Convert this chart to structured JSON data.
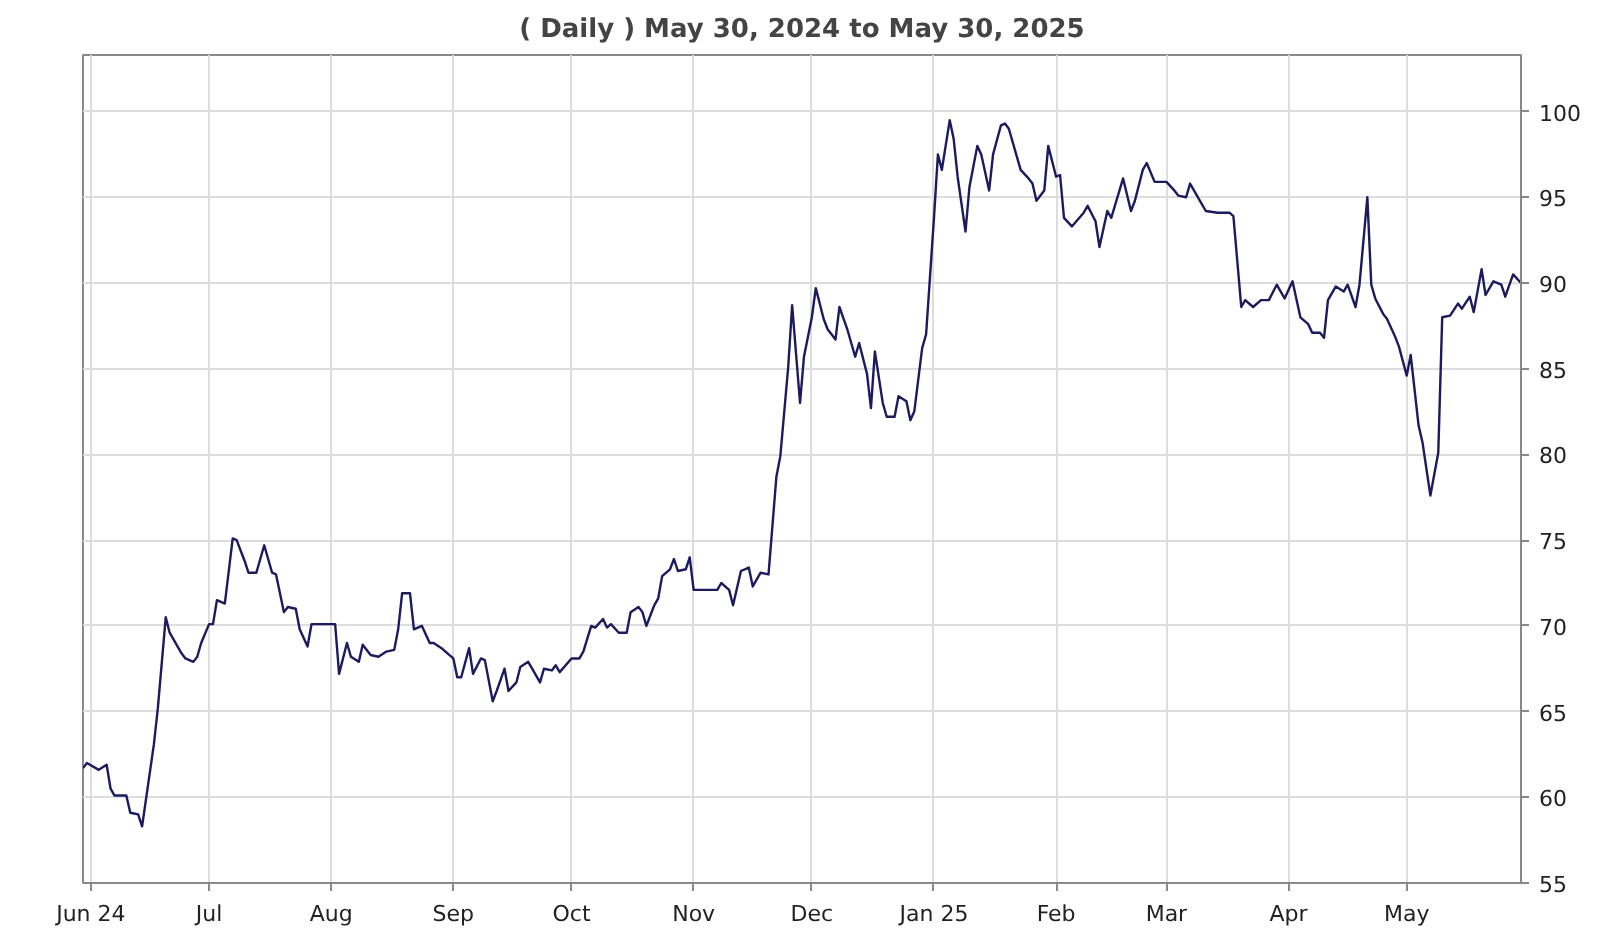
{
  "chart_data": {
    "type": "line",
    "title": "( Daily ) May 30, 2024 to May 30, 2025",
    "x": [
      "2024-05-30",
      "2024-05-31",
      "2024-06-03",
      "2024-06-05",
      "2024-06-06",
      "2024-06-07",
      "2024-06-10",
      "2024-06-11",
      "2024-06-13",
      "2024-06-14",
      "2024-06-17",
      "2024-06-18",
      "2024-06-20",
      "2024-06-21",
      "2024-06-24",
      "2024-06-25",
      "2024-06-27",
      "2024-06-28",
      "2024-06-29",
      "2024-07-01",
      "2024-07-02",
      "2024-07-03",
      "2024-07-05",
      "2024-07-07",
      "2024-07-08",
      "2024-07-10",
      "2024-07-11",
      "2024-07-13",
      "2024-07-15",
      "2024-07-17",
      "2024-07-18",
      "2024-07-20",
      "2024-07-21",
      "2024-07-23",
      "2024-07-24",
      "2024-07-26",
      "2024-07-27",
      "2024-08-02",
      "2024-08-03",
      "2024-08-05",
      "2024-08-06",
      "2024-08-08",
      "2024-08-09",
      "2024-08-11",
      "2024-08-13",
      "2024-08-15",
      "2024-08-17",
      "2024-08-18",
      "2024-08-19",
      "2024-08-21",
      "2024-08-22",
      "2024-08-24",
      "2024-08-26",
      "2024-08-27",
      "2024-08-29",
      "2024-08-30",
      "2024-09-01",
      "2024-09-02",
      "2024-09-03",
      "2024-09-05",
      "2024-09-06",
      "2024-09-08",
      "2024-09-09",
      "2024-09-11",
      "2024-09-12",
      "2024-09-14",
      "2024-09-15",
      "2024-09-17",
      "2024-09-18",
      "2024-09-20",
      "2024-09-21",
      "2024-09-23",
      "2024-09-24",
      "2024-09-26",
      "2024-09-27",
      "2024-09-28",
      "2024-10-01",
      "2024-10-03",
      "2024-10-04",
      "2024-10-06",
      "2024-10-07",
      "2024-10-09",
      "2024-10-10",
      "2024-10-11",
      "2024-10-13",
      "2024-10-15",
      "2024-10-16",
      "2024-10-18",
      "2024-10-19",
      "2024-10-20",
      "2024-10-22",
      "2024-10-23",
      "2024-10-24",
      "2024-10-26",
      "2024-10-27",
      "2024-10-28",
      "2024-10-30",
      "2024-10-31",
      "2024-11-01",
      "2024-11-07",
      "2024-11-08",
      "2024-11-10",
      "2024-11-11",
      "2024-11-13",
      "2024-11-15",
      "2024-11-16",
      "2024-11-18",
      "2024-11-20",
      "2024-11-22",
      "2024-11-23",
      "2024-11-25",
      "2024-11-26",
      "2024-11-28",
      "2024-11-29",
      "2024-12-01",
      "2024-12-02",
      "2024-12-04",
      "2024-12-05",
      "2024-12-07",
      "2024-12-08",
      "2024-12-10",
      "2024-12-12",
      "2024-12-13",
      "2024-12-15",
      "2024-12-16",
      "2024-12-17",
      "2024-12-19",
      "2024-12-20",
      "2024-12-22",
      "2024-12-23",
      "2024-12-25",
      "2024-12-26",
      "2024-12-27",
      "2024-12-29",
      "2024-12-30",
      "2025-01-01",
      "2025-01-02",
      "2025-01-03",
      "2025-01-05",
      "2025-01-06",
      "2025-01-07",
      "2025-01-09",
      "2025-01-10",
      "2025-01-12",
      "2025-01-13",
      "2025-01-15",
      "2025-01-16",
      "2025-01-18",
      "2025-01-19",
      "2025-01-20",
      "2025-01-22",
      "2025-01-23",
      "2025-01-25",
      "2025-01-26",
      "2025-01-27",
      "2025-01-29",
      "2025-01-30",
      "2025-02-01",
      "2025-02-02",
      "2025-02-03",
      "2025-02-05",
      "2025-02-08",
      "2025-02-09",
      "2025-02-11",
      "2025-02-12",
      "2025-02-14",
      "2025-02-15",
      "2025-02-18",
      "2025-02-20",
      "2025-02-21",
      "2025-02-23",
      "2025-02-24",
      "2025-02-26",
      "2025-03-01",
      "2025-03-03",
      "2025-03-04",
      "2025-03-06",
      "2025-03-07",
      "2025-03-09",
      "2025-03-11",
      "2025-03-14",
      "2025-03-17",
      "2025-03-18",
      "2025-03-20",
      "2025-03-21",
      "2025-03-23",
      "2025-03-25",
      "2025-03-27",
      "2025-03-29",
      "2025-03-31",
      "2025-04-02",
      "2025-04-04",
      "2025-04-06",
      "2025-04-07",
      "2025-04-09",
      "2025-04-10",
      "2025-04-11",
      "2025-04-13",
      "2025-04-15",
      "2025-04-16",
      "2025-04-18",
      "2025-04-19",
      "2025-04-21",
      "2025-04-22",
      "2025-04-23",
      "2025-04-25",
      "2025-04-26",
      "2025-04-28",
      "2025-04-29",
      "2025-05-01",
      "2025-05-02",
      "2025-05-04",
      "2025-05-05",
      "2025-05-07",
      "2025-05-09",
      "2025-05-10",
      "2025-05-12",
      "2025-05-14",
      "2025-05-15",
      "2025-05-17",
      "2025-05-18",
      "2025-05-20",
      "2025-05-21",
      "2025-05-23",
      "2025-05-25",
      "2025-05-26",
      "2025-05-28",
      "2025-05-30"
    ],
    "series": [
      {
        "color": "#1b1b5e",
        "values": [
          61.7,
          62.0,
          61.6,
          61.9,
          60.5,
          60.1,
          60.1,
          59.1,
          59.0,
          58.3,
          63.1,
          65.2,
          70.5,
          69.6,
          68.4,
          68.1,
          67.9,
          68.2,
          69.0,
          70.1,
          70.1,
          71.5,
          71.3,
          75.1,
          75.0,
          73.8,
          73.1,
          73.1,
          74.7,
          73.1,
          73.0,
          70.8,
          71.1,
          71.0,
          69.8,
          68.8,
          70.1,
          70.1,
          67.2,
          69.0,
          68.2,
          67.9,
          68.9,
          68.3,
          68.2,
          68.5,
          68.6,
          69.8,
          71.9,
          71.9,
          69.8,
          70.0,
          69.0,
          69.0,
          68.7,
          68.5,
          68.1,
          67.0,
          67.0,
          68.7,
          67.2,
          68.1,
          68.0,
          65.6,
          66.2,
          67.5,
          66.2,
          66.7,
          67.6,
          67.9,
          67.5,
          66.7,
          67.5,
          67.4,
          67.7,
          67.3,
          68.1,
          68.1,
          68.5,
          70.0,
          69.9,
          70.4,
          69.9,
          70.1,
          69.6,
          69.6,
          70.8,
          71.1,
          70.8,
          70.0,
          71.2,
          71.6,
          72.9,
          73.3,
          73.9,
          73.2,
          73.3,
          74.0,
          72.1,
          72.1,
          72.5,
          72.1,
          71.2,
          73.2,
          73.4,
          72.3,
          73.1,
          73.0,
          78.7,
          79.9,
          85.1,
          88.7,
          83.0,
          85.7,
          88.0,
          89.7,
          87.9,
          87.3,
          86.7,
          88.6,
          87.3,
          85.7,
          86.5,
          84.7,
          82.7,
          86.0,
          83.0,
          82.2,
          82.2,
          83.4,
          83.1,
          82.0,
          82.5,
          86.2,
          87.0,
          93.8,
          97.5,
          96.6,
          99.5,
          98.4,
          96.2,
          93.0,
          95.6,
          98.0,
          97.5,
          95.4,
          97.5,
          99.2,
          99.3,
          99.0,
          97.4,
          96.6,
          96.1,
          95.8,
          94.8,
          95.4,
          98.0,
          96.2,
          96.3,
          93.8,
          93.3,
          94.1,
          94.5,
          93.6,
          92.1,
          94.2,
          93.8,
          96.1,
          94.2,
          94.8,
          96.6,
          97.0,
          95.9,
          95.9,
          95.4,
          95.1,
          95.0,
          95.8,
          95.0,
          94.2,
          94.1,
          94.1,
          93.9,
          88.6,
          89.0,
          88.6,
          89.0,
          89.0,
          89.9,
          89.1,
          90.1,
          88.0,
          87.6,
          87.1,
          87.1,
          86.8,
          89.0,
          89.8,
          89.5,
          89.9,
          88.6,
          89.9,
          95.0,
          89.9,
          89.1,
          88.2,
          87.9,
          86.9,
          86.3,
          84.6,
          85.8,
          81.7,
          80.7,
          77.6,
          80.1,
          88.0,
          88.1,
          88.8,
          88.5,
          89.2,
          88.3,
          90.8,
          89.3,
          90.1,
          89.9,
          89.2,
          90.5,
          90.0
        ]
      }
    ],
    "xlim": [
      "2024-05-30",
      "2025-05-30"
    ],
    "xticks": [
      {
        "value": "2024-06-01",
        "label": "Jun 24"
      },
      {
        "value": "2024-07-01",
        "label": "Jul"
      },
      {
        "value": "2024-08-01",
        "label": "Aug"
      },
      {
        "value": "2024-09-01",
        "label": "Sep"
      },
      {
        "value": "2024-10-01",
        "label": "Oct"
      },
      {
        "value": "2024-11-01",
        "label": "Nov"
      },
      {
        "value": "2024-12-01",
        "label": "Dec"
      },
      {
        "value": "2025-01-01",
        "label": "Jan 25"
      },
      {
        "value": "2025-02-01",
        "label": "Feb"
      },
      {
        "value": "2025-03-01",
        "label": "Mar"
      },
      {
        "value": "2025-04-01",
        "label": "Apr"
      },
      {
        "value": "2025-05-01",
        "label": "May"
      }
    ],
    "ylim": [
      55,
      103.3
    ],
    "yticks": [
      55,
      60,
      65,
      70,
      75,
      80,
      85,
      90,
      95,
      100
    ],
    "grid": true,
    "line_style": "solid",
    "marker": "none"
  }
}
